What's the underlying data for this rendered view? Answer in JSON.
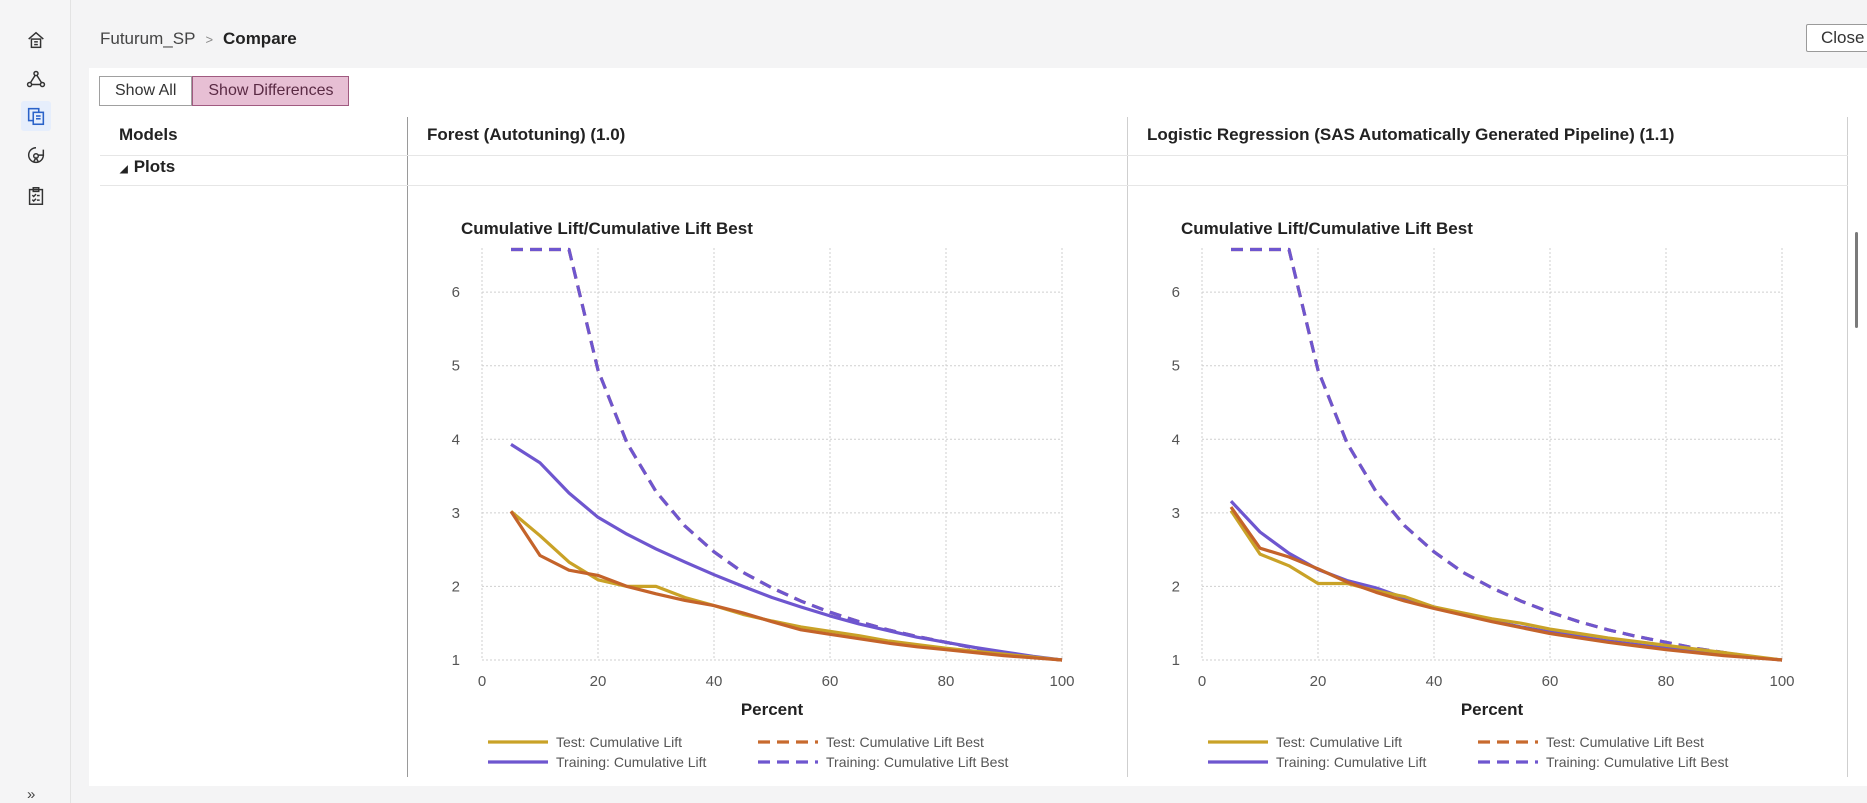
{
  "breadcrumb": {
    "project": "Futurum_SP",
    "current": "Compare"
  },
  "close_label": "Close",
  "filter": {
    "show_all": "Show All",
    "show_differences": "Show Differences",
    "selected": "Show Differences"
  },
  "table": {
    "models_header": "Models",
    "plots_label": "Plots"
  },
  "models": [
    {
      "name": "Forest (Autotuning) (1.0)"
    },
    {
      "name": "Logistic Regression (SAS Automatically Generated Pipeline) (1.1)"
    }
  ],
  "sidebar": {
    "icons": [
      "home-icon",
      "pipeline-icon",
      "compare-icon",
      "model-manager-icon",
      "checklist-icon"
    ],
    "expand": "»"
  },
  "chart_data": [
    {
      "type": "line",
      "title": "Cumulative Lift/Cumulative Lift Best",
      "xlabel": "Percent",
      "ylabel": "",
      "xlim": [
        0,
        100
      ],
      "ylim": [
        1,
        6.6
      ],
      "xticks": [
        0,
        20,
        40,
        60,
        80,
        100
      ],
      "yticks": [
        1,
        2,
        3,
        4,
        5,
        6
      ],
      "grid": true,
      "legend": "bottom",
      "series": [
        {
          "name": "Test: Cumulative Lift",
          "color": "#c9a227",
          "dash": false,
          "x": [
            5,
            10,
            15,
            20,
            25,
            30,
            35,
            40,
            45,
            50,
            55,
            60,
            65,
            70,
            75,
            80,
            85,
            90,
            95,
            100
          ],
          "y": [
            3.02,
            2.69,
            2.33,
            2.09,
            2.0,
            2.0,
            1.85,
            1.74,
            1.62,
            1.53,
            1.45,
            1.39,
            1.33,
            1.26,
            1.21,
            1.16,
            1.12,
            1.08,
            1.04,
            1.0
          ]
        },
        {
          "name": "Test: Cumulative Lift Best",
          "color": "#c86a2e",
          "dash": true,
          "x": [
            5,
            10,
            15,
            20,
            25,
            30,
            35,
            40,
            45,
            50,
            55,
            60,
            65,
            70,
            75,
            80,
            85,
            90,
            95,
            100
          ],
          "y": [
            6.58,
            6.58,
            6.58,
            4.94,
            3.95,
            3.29,
            2.82,
            2.47,
            2.19,
            1.98,
            1.8,
            1.65,
            1.52,
            1.41,
            1.32,
            1.24,
            1.16,
            1.1,
            1.04,
            1.0
          ]
        },
        {
          "name": "Training: Cumulative Lift",
          "color": "#6e56cf",
          "dash": false,
          "x": [
            5,
            10,
            15,
            20,
            25,
            30,
            35,
            40,
            45,
            50,
            55,
            60,
            65,
            70,
            75,
            80,
            85,
            90,
            95,
            100
          ],
          "y": [
            3.93,
            3.68,
            3.27,
            2.94,
            2.71,
            2.51,
            2.33,
            2.16,
            2.0,
            1.85,
            1.72,
            1.6,
            1.49,
            1.4,
            1.31,
            1.24,
            1.17,
            1.11,
            1.05,
            1.0
          ]
        },
        {
          "name": "Training: Cumulative Lift Best",
          "color": "#6e56cf",
          "dash": true,
          "x": [
            5,
            10,
            15,
            20,
            25,
            30,
            35,
            40,
            45,
            50,
            55,
            60,
            65,
            70,
            75,
            80,
            85,
            90,
            95,
            100
          ],
          "y": [
            6.58,
            6.58,
            6.58,
            4.94,
            3.95,
            3.29,
            2.82,
            2.47,
            2.19,
            1.98,
            1.8,
            1.65,
            1.52,
            1.41,
            1.32,
            1.24,
            1.16,
            1.1,
            1.04,
            1.0
          ]
        },
        {
          "name": "Training: Cumulative Lift (top)",
          "legend": false,
          "color": "#c4632a",
          "dash": false,
          "x": [
            5,
            10,
            15,
            20,
            25,
            30,
            35,
            40,
            45,
            50,
            55,
            60,
            65,
            70,
            75,
            80,
            85,
            90,
            95,
            100
          ],
          "y": [
            3.02,
            2.42,
            2.22,
            2.15,
            2.0,
            1.9,
            1.81,
            1.74,
            1.64,
            1.52,
            1.41,
            1.35,
            1.29,
            1.23,
            1.18,
            1.14,
            1.1,
            1.06,
            1.03,
            1.0
          ]
        }
      ]
    },
    {
      "type": "line",
      "title": "Cumulative Lift/Cumulative Lift Best",
      "xlabel": "Percent",
      "ylabel": "",
      "xlim": [
        0,
        100
      ],
      "ylim": [
        1,
        6.6
      ],
      "xticks": [
        0,
        20,
        40,
        60,
        80,
        100
      ],
      "yticks": [
        1,
        2,
        3,
        4,
        5,
        6
      ],
      "grid": true,
      "legend": "bottom",
      "series": [
        {
          "name": "Test: Cumulative Lift",
          "color": "#c9a227",
          "dash": false,
          "x": [
            5,
            10,
            15,
            20,
            25,
            30,
            35,
            40,
            45,
            50,
            55,
            60,
            65,
            70,
            75,
            80,
            85,
            90,
            95,
            100
          ],
          "y": [
            3.03,
            2.44,
            2.28,
            2.04,
            2.04,
            1.94,
            1.86,
            1.72,
            1.64,
            1.56,
            1.5,
            1.42,
            1.36,
            1.3,
            1.25,
            1.2,
            1.15,
            1.1,
            1.05,
            1.0
          ]
        },
        {
          "name": "Test: Cumulative Lift Best",
          "color": "#c86a2e",
          "dash": true,
          "x": [
            5,
            10,
            15,
            20,
            25,
            30,
            35,
            40,
            45,
            50,
            55,
            60,
            65,
            70,
            75,
            80,
            85,
            90,
            95,
            100
          ],
          "y": [
            6.58,
            6.58,
            6.58,
            4.94,
            3.95,
            3.29,
            2.82,
            2.47,
            2.19,
            1.98,
            1.8,
            1.65,
            1.52,
            1.41,
            1.32,
            1.24,
            1.16,
            1.1,
            1.04,
            1.0
          ]
        },
        {
          "name": "Training: Cumulative Lift",
          "color": "#6e56cf",
          "dash": false,
          "x": [
            5,
            10,
            15,
            20,
            25,
            30,
            35,
            40,
            45,
            50,
            55,
            60,
            65,
            70,
            75,
            80,
            85,
            90,
            95,
            100
          ],
          "y": [
            3.16,
            2.74,
            2.45,
            2.23,
            2.08,
            1.98,
            1.84,
            1.72,
            1.62,
            1.53,
            1.45,
            1.38,
            1.32,
            1.26,
            1.21,
            1.16,
            1.12,
            1.08,
            1.04,
            1.0
          ]
        },
        {
          "name": "Training: Cumulative Lift Best",
          "color": "#6e56cf",
          "dash": true,
          "x": [
            5,
            10,
            15,
            20,
            25,
            30,
            35,
            40,
            45,
            50,
            55,
            60,
            65,
            70,
            75,
            80,
            85,
            90,
            95,
            100
          ],
          "y": [
            6.58,
            6.58,
            6.58,
            4.94,
            3.95,
            3.29,
            2.82,
            2.47,
            2.19,
            1.98,
            1.8,
            1.65,
            1.52,
            1.41,
            1.32,
            1.24,
            1.16,
            1.1,
            1.04,
            1.0
          ]
        },
        {
          "name": "Training: Cumulative Lift (top)",
          "legend": false,
          "color": "#c4632a",
          "dash": false,
          "x": [
            5,
            10,
            15,
            20,
            25,
            30,
            35,
            40,
            45,
            50,
            55,
            60,
            65,
            70,
            75,
            80,
            85,
            90,
            95,
            100
          ],
          "y": [
            3.08,
            2.52,
            2.4,
            2.24,
            2.06,
            1.92,
            1.8,
            1.7,
            1.61,
            1.52,
            1.44,
            1.36,
            1.3,
            1.24,
            1.19,
            1.14,
            1.1,
            1.06,
            1.03,
            1.0
          ]
        }
      ]
    }
  ]
}
